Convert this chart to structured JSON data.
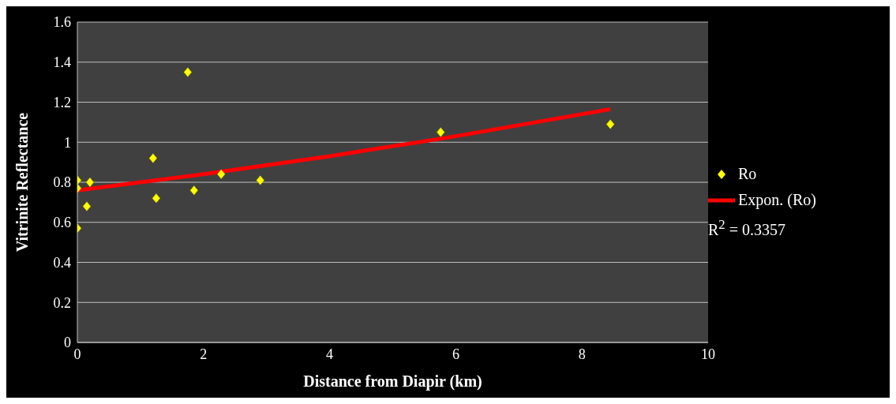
{
  "chart_data": {
    "type": "scatter",
    "xlabel": "Distance from Diapir (km)",
    "ylabel": "Vitrinite Reflectance",
    "series": [
      {
        "name": "Ro",
        "color": "#ffff00",
        "marker": "diamond",
        "x": [
          0,
          0,
          0,
          0.15,
          0.2,
          1.2,
          1.25,
          1.75,
          1.85,
          2.28,
          2.9,
          5.76,
          8.45
        ],
        "values": [
          0.81,
          0.77,
          0.57,
          0.68,
          0.8,
          0.92,
          0.72,
          1.35,
          0.76,
          0.84,
          0.81,
          1.05,
          1.09
        ]
      },
      {
        "name": "Expon. (Ro)",
        "type": "line",
        "color": "#ff0000",
        "marker": "none",
        "x": [
          0,
          2,
          4,
          6,
          8.45
        ],
        "values": [
          0.76,
          0.84,
          0.93,
          1.03,
          1.165
        ]
      }
    ],
    "xlim": [
      0,
      10
    ],
    "xticks": [
      0,
      2,
      4,
      6,
      8,
      10
    ],
    "ylim": [
      0,
      1.6
    ],
    "yticks": [
      0,
      0.2,
      0.4,
      0.6,
      0.8,
      1,
      1.2,
      1.4,
      1.6
    ],
    "grid": "y",
    "legend": "right",
    "annotations": [
      "R$^{2}$ = 0.3357"
    ]
  }
}
